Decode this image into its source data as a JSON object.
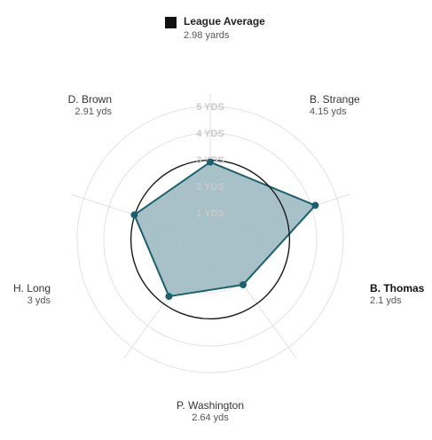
{
  "chart_data": {
    "type": "radar",
    "unit": "yds",
    "rings": [
      "1 YDS",
      "2 YDS",
      "3 YDS",
      "4 YDS",
      "5 YDS"
    ],
    "rmax": 5,
    "legend": {
      "name": "League Average",
      "value_label": "2.98 yards",
      "value": 2.98
    },
    "players": [
      {
        "name": "B. Strange",
        "value": 4.15,
        "value_label": "4.15 yds",
        "highlight": false
      },
      {
        "name": "B. Thomas",
        "value": 2.1,
        "value_label": "2.1 yds",
        "highlight": true
      },
      {
        "name": "P. Washington",
        "value": 2.64,
        "value_label": "2.64 yds",
        "highlight": false
      },
      {
        "name": "H. Long",
        "value": 3,
        "value_label": "3 yds",
        "highlight": false
      },
      {
        "name": "D. Brown",
        "value": 2.91,
        "value_label": "2.91 yds",
        "highlight": false
      }
    ],
    "colors": {
      "fill": "#9fbac3",
      "stroke": "#1e5f6e",
      "point": "#1e5f6e",
      "average": "#111111",
      "grid": "#e2e2e2"
    }
  }
}
